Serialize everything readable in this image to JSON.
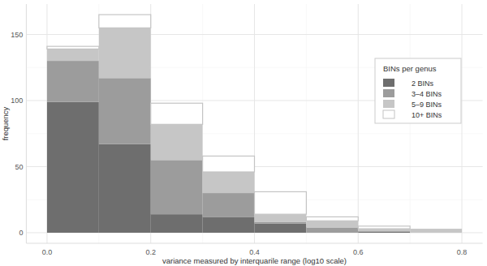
{
  "chart_data": {
    "type": "histogram",
    "x_label": "variance measured by interquarile range (log10 scale)",
    "y_label": "frequency",
    "legend_title": "BINs per genus",
    "bins": [
      0,
      0.1,
      0.2,
      0.3,
      0.4,
      0.5,
      0.6,
      0.7,
      0.8
    ],
    "series": [
      {
        "name": "2 BINs",
        "color": "#6e6e6e",
        "values": [
          99,
          67,
          14,
          12,
          7,
          0,
          1,
          0
        ]
      },
      {
        "name": "3–4 BINs",
        "color": "#9c9c9c",
        "values": [
          31,
          50,
          41,
          18,
          1,
          4,
          0,
          0
        ]
      },
      {
        "name": "5–9 BINs",
        "color": "#c6c6c6",
        "values": [
          9,
          38,
          27,
          16,
          6,
          5,
          2,
          3
        ]
      },
      {
        "name": "10+ BINs",
        "color": "#ffffff",
        "values": [
          2,
          10,
          16,
          12,
          17,
          3,
          2,
          0
        ]
      }
    ],
    "stacked": true,
    "xlim": [
      -0.04,
      0.84
    ],
    "ylim": [
      -8,
      173
    ],
    "xticks": [
      {
        "value": 0,
        "label": "0.0"
      },
      0.2,
      0.4,
      0.6,
      0.8
    ],
    "yticks": [
      0,
      50,
      100,
      150
    ],
    "grid": true,
    "legend": "right"
  }
}
